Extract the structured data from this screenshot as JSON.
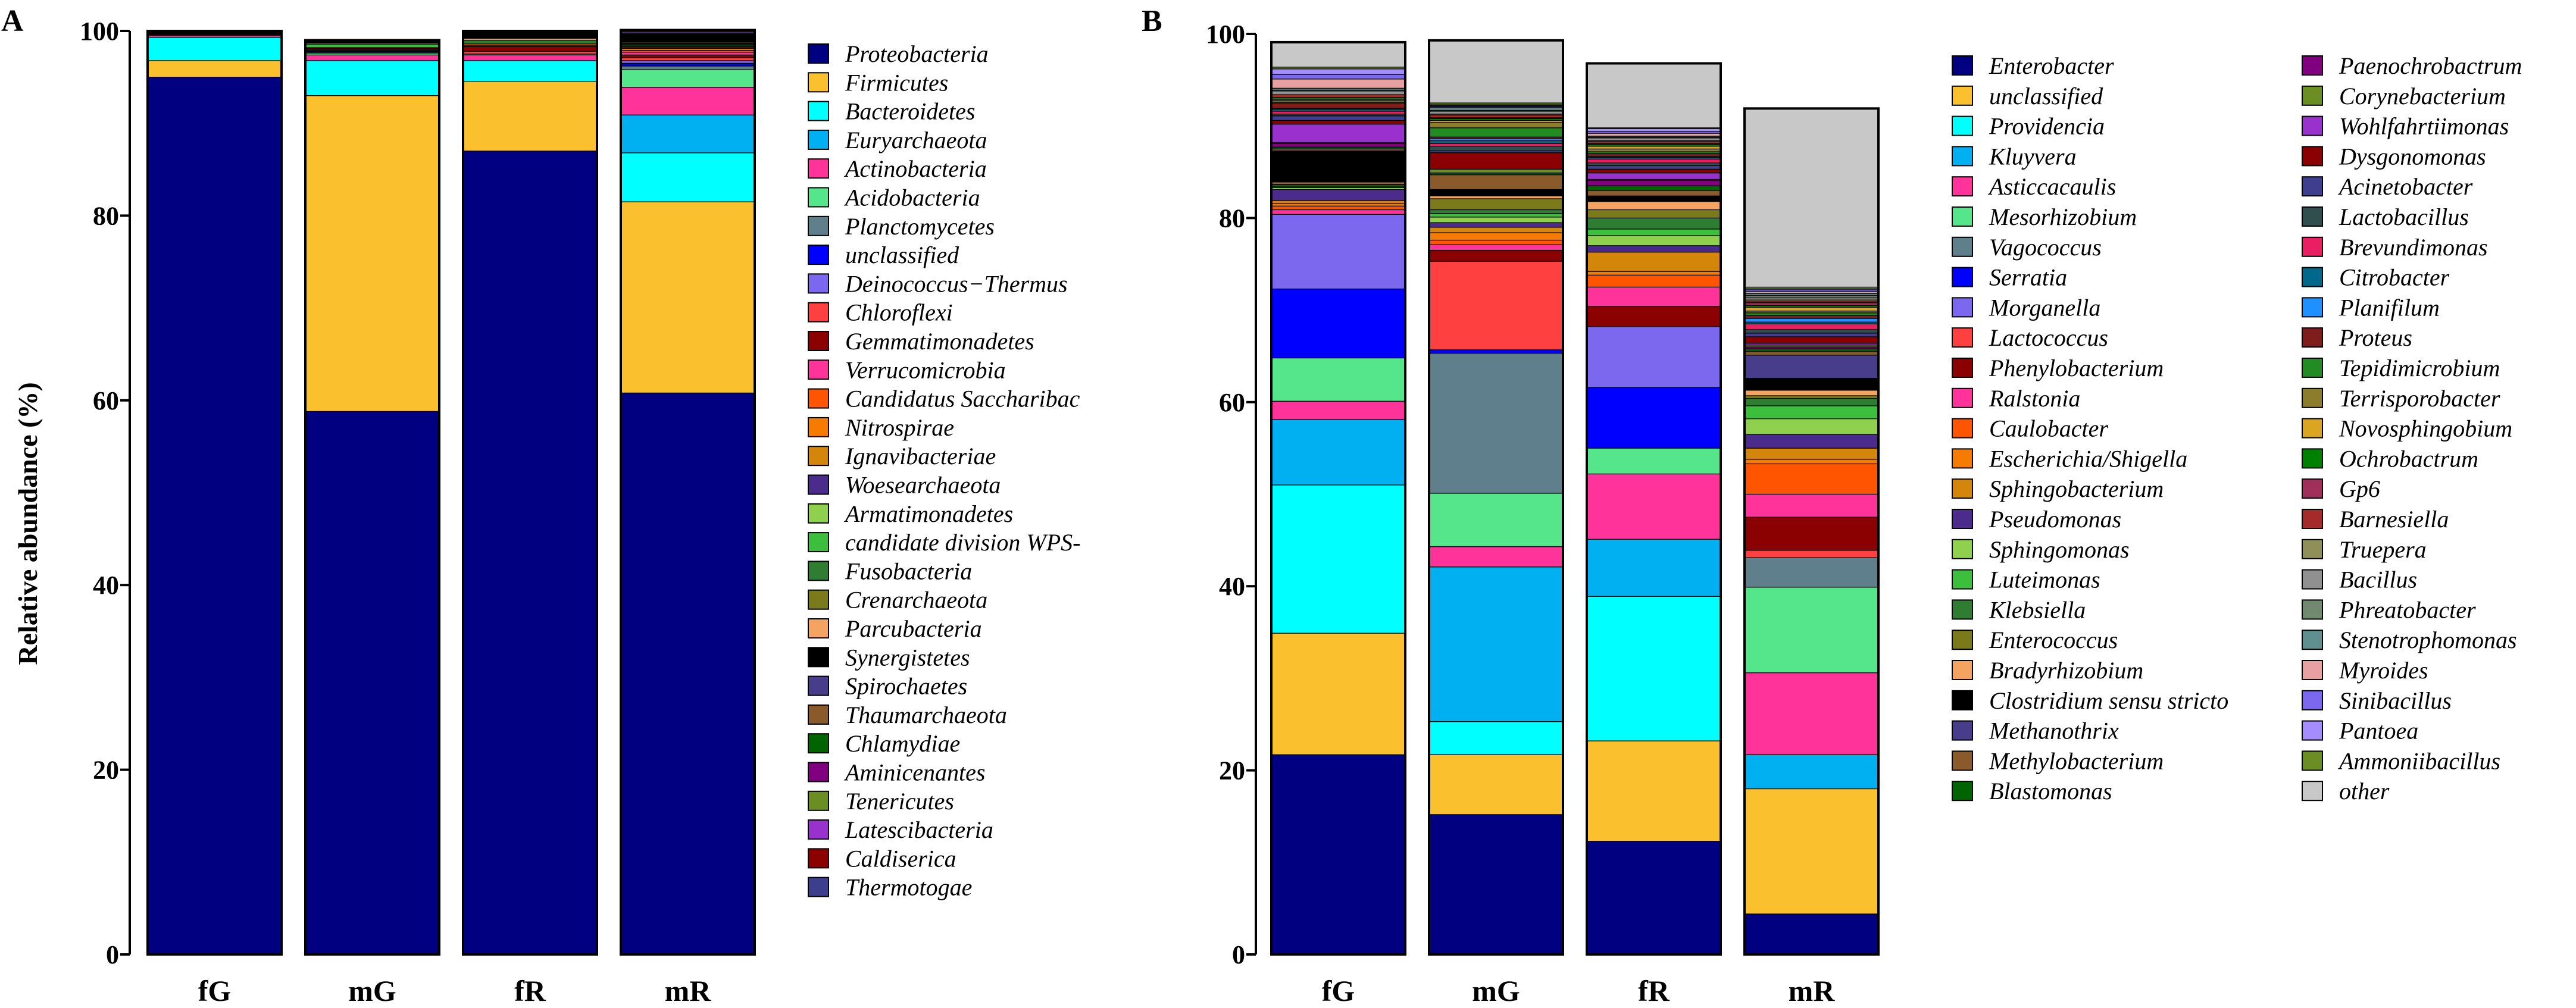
{
  "chart_data": [
    {
      "panel": "A",
      "type": "bar",
      "stacked": true,
      "title": "",
      "xlabel": "",
      "ylabel": "Relative abundance (%)",
      "ylim": [
        0,
        100
      ],
      "yticks": [
        "0",
        "20",
        "40",
        "60",
        "80",
        "100"
      ],
      "categories": [
        "fG",
        "mG",
        "fR",
        "mR"
      ],
      "legend_position": "right",
      "series": [
        {
          "name": "Proteobacteria",
          "color": "#000080",
          "values": [
            95,
            58.8,
            87,
            60.8
          ]
        },
        {
          "name": "Firmicutes",
          "color": "#FBC02D",
          "values": [
            1.8,
            34.2,
            7.5,
            20.7
          ]
        },
        {
          "name": "Bacteroidetes",
          "color": "#00FFFF",
          "values": [
            2.5,
            3.8,
            2.3,
            5.3
          ]
        },
        {
          "name": "Euryarchaeota",
          "color": "#00B0F0",
          "values": [
            0,
            0,
            0,
            4.1
          ]
        },
        {
          "name": "Actinobacteria",
          "color": "#FF3399",
          "values": [
            0.2,
            0.6,
            0.6,
            3
          ]
        },
        {
          "name": "Acidobacteria",
          "color": "#55E68C",
          "values": [
            0,
            0.2,
            0.1,
            1.9
          ]
        },
        {
          "name": "Planctomycetes",
          "color": "#5F7F8C",
          "values": [
            0,
            0.1,
            0,
            0.4
          ]
        },
        {
          "name": "unclassified",
          "color": "#0000FF",
          "values": [
            0,
            0.1,
            0,
            0.3
          ]
        },
        {
          "name": "Deinococcus−Thermus",
          "color": "#7B68EE",
          "values": [
            0,
            0,
            0,
            0.3
          ]
        },
        {
          "name": "Chloroflexi",
          "color": "#FF4040",
          "values": [
            0.1,
            0.1,
            0.3,
            0.3
          ]
        },
        {
          "name": "Gemmatimonadetes",
          "color": "#8B0000",
          "values": [
            0,
            0.1,
            0.5,
            0.3
          ]
        },
        {
          "name": "Verrucomicrobia",
          "color": "#FF3399",
          "values": [
            0,
            0.1,
            0.1,
            0.3
          ]
        },
        {
          "name": "Candidatus Saccharibac",
          "color": "#FF5500",
          "values": [
            0,
            0.1,
            0.2,
            0.2
          ]
        },
        {
          "name": "Nitrospirae",
          "color": "#F57C00",
          "values": [
            0,
            0,
            0,
            0.2
          ]
        },
        {
          "name": "Ignavibacteriae",
          "color": "#D4860B",
          "values": [
            0,
            0,
            0,
            0.1
          ]
        },
        {
          "name": "Woesearchaeota",
          "color": "#4B2C8C",
          "values": [
            0,
            0,
            0,
            0.1
          ]
        },
        {
          "name": "Armatimonadetes",
          "color": "#8FD14F",
          "values": [
            0,
            0,
            0,
            0.1
          ]
        },
        {
          "name": "candidate division WPS-",
          "color": "#3CBF3C",
          "values": [
            0,
            0.3,
            0,
            0.1
          ]
        },
        {
          "name": "Fusobacteria",
          "color": "#2E7D32",
          "values": [
            0,
            0.2,
            0.4,
            0.1
          ]
        },
        {
          "name": "Crenarchaeota",
          "color": "#7A7A1A",
          "values": [
            0,
            0,
            0,
            0.1
          ]
        },
        {
          "name": "Parcubacteria",
          "color": "#F4A460",
          "values": [
            0,
            0,
            0.2,
            0.1
          ]
        },
        {
          "name": "Synergistetes",
          "color": "#000000",
          "values": [
            0.4,
            0.3,
            0.8,
            0.9
          ]
        },
        {
          "name": "Spirochaetes",
          "color": "#483D8B",
          "values": [
            0,
            0,
            0,
            0.2
          ]
        },
        {
          "name": "Thaumarchaeota",
          "color": "#8B5A2B",
          "values": [
            0,
            0,
            0,
            0.1
          ]
        },
        {
          "name": "Chlamydiae",
          "color": "#006400",
          "values": [
            0,
            0,
            0,
            0
          ]
        },
        {
          "name": "Aminicenantes",
          "color": "#800080",
          "values": [
            0,
            0,
            0,
            0
          ]
        },
        {
          "name": "Tenericutes",
          "color": "#6B8E23",
          "values": [
            0,
            0,
            0,
            0
          ]
        },
        {
          "name": "Latescibacteria",
          "color": "#9932CC",
          "values": [
            0,
            0,
            0,
            0
          ]
        },
        {
          "name": "Caldiserica",
          "color": "#8B0000",
          "values": [
            0,
            0,
            0,
            0
          ]
        },
        {
          "name": "Thermotogae",
          "color": "#3E3E8E",
          "values": [
            0,
            0,
            0,
            0.1
          ]
        }
      ]
    },
    {
      "panel": "B",
      "type": "bar",
      "stacked": true,
      "title": "",
      "xlabel": "",
      "ylabel": "",
      "ylim": [
        0,
        100
      ],
      "yticks": [
        "0",
        "20",
        "40",
        "60",
        "80",
        "100"
      ],
      "categories": [
        "fG",
        "mG",
        "fR",
        "mR"
      ],
      "legend_position": "right",
      "series": [
        {
          "name": "Enterobacter",
          "color": "#000080",
          "values": [
            21.7,
            15.2,
            12.3,
            4.4
          ]
        },
        {
          "name": "unclassified",
          "color": "#FBC02D",
          "values": [
            13.2,
            6.5,
            10.9,
            13.6
          ]
        },
        {
          "name": "Providencia",
          "color": "#00FFFF",
          "values": [
            16.1,
            3.6,
            15.7,
            0
          ]
        },
        {
          "name": "Kluyvera",
          "color": "#00B0F0",
          "values": [
            7.1,
            16.8,
            6.2,
            3.7
          ]
        },
        {
          "name": "Asticcacaulis",
          "color": "#FF3399",
          "values": [
            2,
            2.2,
            7.1,
            8.9
          ]
        },
        {
          "name": "Mesorhizobium",
          "color": "#55E68C",
          "values": [
            4.7,
            5.8,
            2.8,
            9.3
          ]
        },
        {
          "name": "Vagococcus",
          "color": "#5F7F8C",
          "values": [
            0,
            15.2,
            0,
            3.2
          ]
        },
        {
          "name": "Serratia",
          "color": "#0000FF",
          "values": [
            7.5,
            0.4,
            6.6,
            0
          ]
        },
        {
          "name": "Morganella",
          "color": "#7B68EE",
          "values": [
            8.1,
            0,
            6.6,
            0
          ]
        },
        {
          "name": "Lactococcus",
          "color": "#FF4040",
          "values": [
            0,
            9.6,
            0,
            0.8
          ]
        },
        {
          "name": "Phenylobacterium",
          "color": "#8B0000",
          "values": [
            0,
            1.2,
            2.2,
            3.6
          ]
        },
        {
          "name": "Ralstonia",
          "color": "#FF3399",
          "values": [
            0.5,
            0.6,
            2.1,
            2.5
          ]
        },
        {
          "name": "Caulobacter",
          "color": "#FF5500",
          "values": [
            0.4,
            0.5,
            1.3,
            3.3
          ]
        },
        {
          "name": "Escherichia/Shigella",
          "color": "#F57C00",
          "values": [
            0.3,
            0.8,
            0.4,
            0.5
          ]
        },
        {
          "name": "Sphingobacterium",
          "color": "#D4860B",
          "values": [
            0.3,
            0.6,
            2.1,
            1.2
          ]
        },
        {
          "name": "Pseudomonas",
          "color": "#4B2C8C",
          "values": [
            1.2,
            0.5,
            0.7,
            1.5
          ]
        },
        {
          "name": "Sphingomonas",
          "color": "#8FD14F",
          "values": [
            0.2,
            0.6,
            1.1,
            1.7
          ]
        },
        {
          "name": "Luteimonas",
          "color": "#3CBF3C",
          "values": [
            0.1,
            0.4,
            0.7,
            1.4
          ]
        },
        {
          "name": "Klebsiella",
          "color": "#2E7D32",
          "values": [
            0.2,
            0.4,
            1.2,
            0.8
          ]
        },
        {
          "name": "Enterococcus",
          "color": "#7A7A1A",
          "values": [
            0.1,
            1.2,
            0.9,
            0.3
          ]
        },
        {
          "name": "Bradyrhizobium",
          "color": "#F4A460",
          "values": [
            0.2,
            0.3,
            0.9,
            0.6
          ]
        },
        {
          "name": "Clostridium sensu stricto",
          "color": "#000000",
          "values": [
            3.4,
            0.7,
            0.6,
            1.3
          ]
        },
        {
          "name": "Methanothrix",
          "color": "#483D8B",
          "values": [
            0,
            0,
            0,
            2.5
          ]
        },
        {
          "name": "Methylobacterium",
          "color": "#8B5A2B",
          "values": [
            0.2,
            1.6,
            0.6,
            0.4
          ]
        },
        {
          "name": "Blastomonas",
          "color": "#006400",
          "values": [
            0.2,
            0.2,
            0.5,
            0.3
          ]
        },
        {
          "name": "Paenochrobactrum",
          "color": "#800080",
          "values": [
            0.4,
            0,
            0.6,
            0.2
          ]
        },
        {
          "name": "Corynebacterium",
          "color": "#6B8E23",
          "values": [
            0.1,
            0.4,
            0.1,
            0.2
          ]
        },
        {
          "name": "Wohlfahrtiimonas",
          "color": "#9932CC",
          "values": [
            2,
            0,
            0.7,
            0.2
          ]
        },
        {
          "name": "Dysgonomonas",
          "color": "#8B0000",
          "values": [
            0.4,
            1.8,
            0.4,
            0.7
          ]
        },
        {
          "name": "Acinetobacter",
          "color": "#3E3E8E",
          "values": [
            0.5,
            0.2,
            0.4,
            0.4
          ]
        },
        {
          "name": "Lactobacillus",
          "color": "#2F4F4F",
          "values": [
            0.2,
            0.5,
            0.3,
            0.4
          ]
        },
        {
          "name": "Brevundimonas",
          "color": "#E91E63",
          "values": [
            0.3,
            0.3,
            0.4,
            0.6
          ]
        },
        {
          "name": "Citrobacter",
          "color": "#00688B",
          "values": [
            0.2,
            0.3,
            0.2,
            0.2
          ]
        },
        {
          "name": "Planifilum",
          "color": "#1E90FF",
          "values": [
            0.1,
            0.2,
            0.1,
            0.4
          ]
        },
        {
          "name": "Proteus",
          "color": "#7F1D1D",
          "values": [
            0.6,
            0.2,
            0.3,
            0.3
          ]
        },
        {
          "name": "Tepidimicrobium",
          "color": "#228B22",
          "values": [
            0.1,
            1,
            0.2,
            0.3
          ]
        },
        {
          "name": "Terrisporobacter",
          "color": "#8B7D2B",
          "values": [
            0.2,
            0.6,
            0.3,
            0.2
          ]
        },
        {
          "name": "Novosphingobium",
          "color": "#DAA520",
          "values": [
            0.1,
            0.2,
            0.3,
            0.4
          ]
        },
        {
          "name": "Ochrobactrum",
          "color": "#008000",
          "values": [
            0.2,
            0.2,
            0.2,
            0.2
          ]
        },
        {
          "name": "Gp6",
          "color": "#A0305A",
          "values": [
            0,
            0.1,
            0.1,
            0.3
          ]
        },
        {
          "name": "Barnesiella",
          "color": "#A52A2A",
          "values": [
            0.3,
            0.3,
            0.2,
            0.2
          ]
        },
        {
          "name": "Truepera",
          "color": "#8F8F5A",
          "values": [
            0,
            0.1,
            0.1,
            0.2
          ]
        },
        {
          "name": "Bacillus",
          "color": "#909090",
          "values": [
            0.4,
            0.3,
            0.3,
            0.2
          ]
        },
        {
          "name": "Phreatobacter",
          "color": "#708A70",
          "values": [
            0.1,
            0.1,
            0.1,
            0.2
          ]
        },
        {
          "name": "Stenotrophomonas",
          "color": "#5F8F8F",
          "values": [
            0.2,
            0.3,
            0.1,
            0.2
          ]
        },
        {
          "name": "Myroides",
          "color": "#E8A0A0",
          "values": [
            1,
            0.1,
            0.3,
            0.2
          ]
        },
        {
          "name": "Sinibacillus",
          "color": "#7B68EE",
          "values": [
            0.5,
            0.1,
            0.2,
            0.2
          ]
        },
        {
          "name": "Pantoea",
          "color": "#A58CFF",
          "values": [
            0.6,
            0.1,
            0.3,
            0.1
          ]
        },
        {
          "name": "Ammoniibacillus",
          "color": "#6B8E23",
          "values": [
            0.2,
            0.2,
            0.1,
            0.2
          ]
        },
        {
          "name": "other",
          "color": "#C8C8C8",
          "values": [
            2.7,
            6.8,
            7,
            19.4
          ]
        }
      ]
    }
  ]
}
